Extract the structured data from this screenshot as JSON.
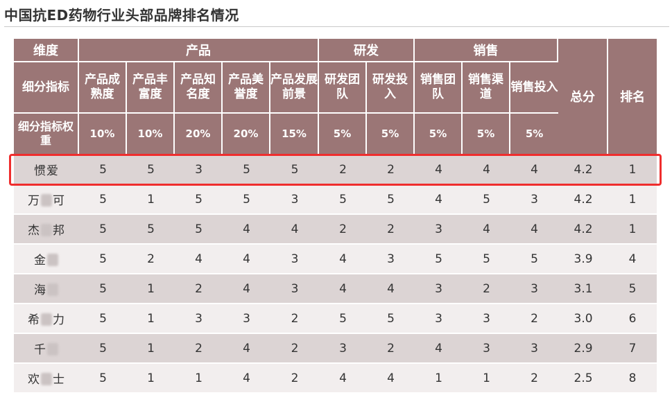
{
  "title": "中国抗ED药物行业头部品牌排名情况",
  "table": {
    "header_dimension": "维度",
    "header_sub_indicator": "细分指标",
    "header_weight": "细分指标权重",
    "groups": [
      "产品",
      "研发",
      "销售"
    ],
    "sub_columns": [
      "产品成熟度",
      "产品丰富度",
      "产品知名度",
      "产品美誉度",
      "产品发展前景",
      "研发团队",
      "研发投入",
      "销售团队",
      "销售渠道",
      "销售投入"
    ],
    "weights": [
      "10%",
      "10%",
      "20%",
      "20%",
      "15%",
      "5%",
      "5%",
      "5%",
      "5%",
      "5%"
    ],
    "total_label": "总分",
    "rank_label": "排名",
    "rows": [
      {
        "brand_a": "惯爱",
        "brand_b": "",
        "scores": [
          "5",
          "5",
          "3",
          "5",
          "5",
          "2",
          "2",
          "4",
          "4",
          "4"
        ],
        "total": "4.2",
        "rank": "1"
      },
      {
        "brand_a": "万",
        "brand_b": "可",
        "scores": [
          "5",
          "1",
          "5",
          "5",
          "3",
          "5",
          "5",
          "4",
          "5",
          "3"
        ],
        "total": "4.2",
        "rank": "1"
      },
      {
        "brand_a": "杰",
        "brand_b": "邦",
        "scores": [
          "5",
          "5",
          "5",
          "4",
          "4",
          "2",
          "2",
          "3",
          "4",
          "4"
        ],
        "total": "4.2",
        "rank": "1"
      },
      {
        "brand_a": "金",
        "brand_b": "",
        "scores": [
          "5",
          "2",
          "4",
          "4",
          "3",
          "4",
          "3",
          "5",
          "5",
          "5"
        ],
        "total": "3.9",
        "rank": "4"
      },
      {
        "brand_a": "海",
        "brand_b": "",
        "scores": [
          "5",
          "1",
          "2",
          "4",
          "3",
          "4",
          "4",
          "3",
          "2",
          "3"
        ],
        "total": "3.1",
        "rank": "5"
      },
      {
        "brand_a": "希",
        "brand_b": "力",
        "scores": [
          "5",
          "1",
          "3",
          "3",
          "2",
          "5",
          "5",
          "3",
          "3",
          "2"
        ],
        "total": "3.0",
        "rank": "6"
      },
      {
        "brand_a": "千",
        "brand_b": "",
        "scores": [
          "5",
          "1",
          "2",
          "4",
          "2",
          "3",
          "2",
          "4",
          "3",
          "3"
        ],
        "total": "2.9",
        "rank": "7"
      },
      {
        "brand_a": "欢",
        "brand_b": "士",
        "scores": [
          "5",
          "1",
          "1",
          "4",
          "2",
          "4",
          "4",
          "1",
          "1",
          "2"
        ],
        "total": "2.5",
        "rank": "8"
      }
    ]
  },
  "colors": {
    "header_bg": "#9b7676",
    "row_odd_bg": "#dcd4d4",
    "row_even_bg": "#f2eeee",
    "highlight_border": "#ef2d2d"
  }
}
